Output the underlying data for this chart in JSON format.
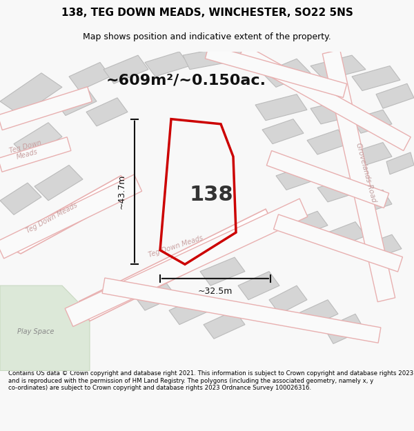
{
  "title_line1": "138, TEG DOWN MEADS, WINCHESTER, SO22 5NS",
  "title_line2": "Map shows position and indicative extent of the property.",
  "area_text": "~609m²/~0.150ac.",
  "number_label": "138",
  "dim_height": "~43.7m",
  "dim_width": "~32.5m",
  "footer_text": "Contains OS data © Crown copyright and database right 2021. This information is subject to Crown copyright and database rights 2023 and is reproduced with the permission of HM Land Registry. The polygons (including the associated geometry, namely x, y co-ordinates) are subject to Crown copyright and database rights 2023 Ordnance Survey 100026316.",
  "bg_color": "#f5f5f5",
  "map_bg_color": "#f0f0f0",
  "road_color": "#e8c8c8",
  "road_fill": "#ffffff",
  "block_color": "#d8d8d8",
  "block_edge": "#cccccc",
  "plot_color": "#cc0000",
  "plot_fill": "none",
  "dim_line_color": "#111111",
  "green_area_color": "#d8e8d0",
  "street_label1": "Teg Down Meads",
  "street_label2": "Grovelands Road",
  "street_label3": "Teg Down Meads",
  "play_space_label": "Play Space"
}
